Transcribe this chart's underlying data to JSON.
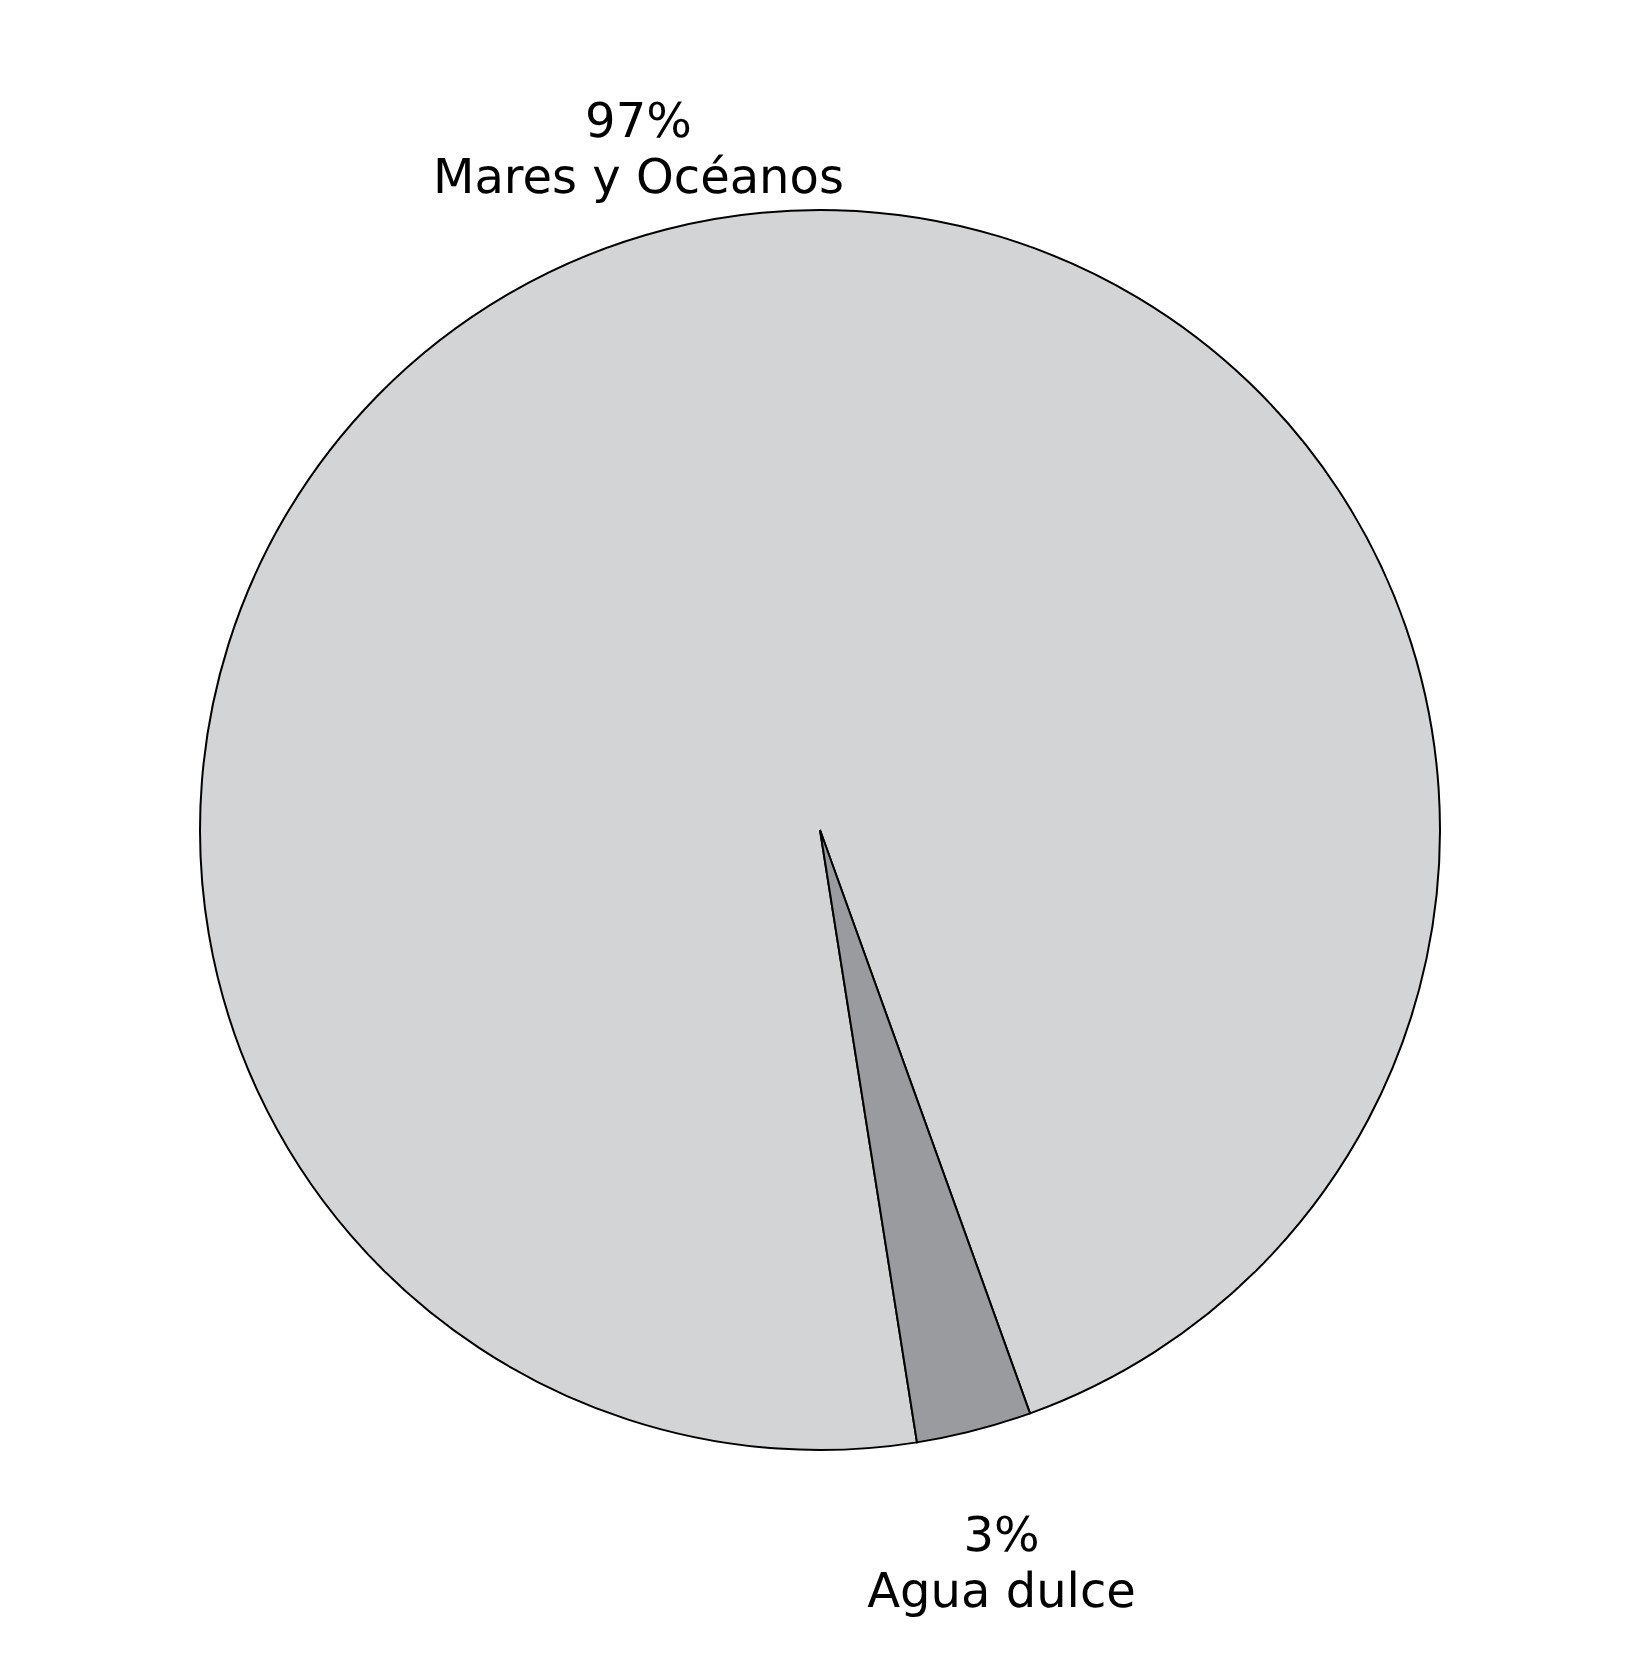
{
  "chart_data": {
    "type": "pie",
    "categories": [
      "Mares y Océanos",
      "Agua dulce"
    ],
    "values": [
      97,
      3
    ],
    "colors": [
      "#d3d4d6",
      "#9a9b9e"
    ],
    "value_labels": [
      "97%",
      "3%"
    ]
  }
}
